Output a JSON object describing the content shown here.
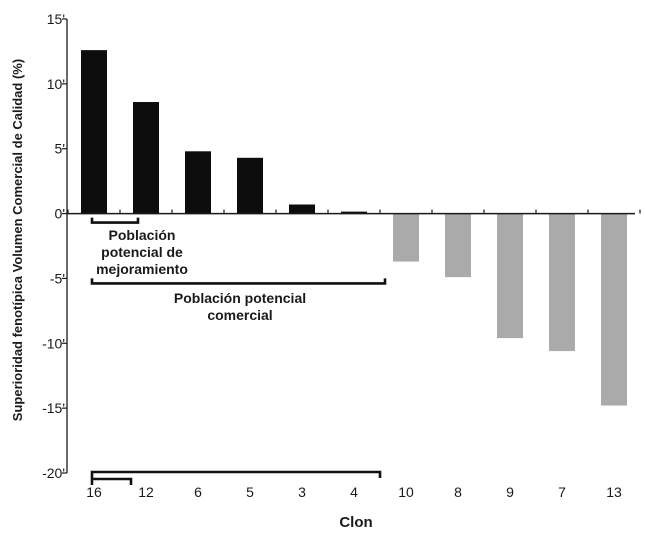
{
  "chart_data": {
    "type": "bar",
    "title": "",
    "xlabel": "Clon",
    "ylabel": "Superioridad fenotípica Volumen Comercial de Calidad (%)",
    "ylim": [
      -20,
      15
    ],
    "y_ticks": [
      15,
      10,
      5,
      0,
      -5,
      -10,
      -15,
      -20
    ],
    "y_tick_labels": [
      "15'",
      "10'",
      "5'",
      "0'",
      "-5'",
      "-10'",
      "-15'",
      "-20'"
    ],
    "grid": false,
    "categories": [
      "16",
      "12",
      "6",
      "5",
      "3",
      "4",
      "10",
      "8",
      "9",
      "7",
      "13"
    ],
    "values": [
      12.6,
      8.6,
      4.8,
      4.3,
      0.7,
      0.15,
      -3.7,
      -4.9,
      -9.6,
      -10.6,
      -14.8
    ],
    "bar_colors": [
      "#0d0d0d",
      "#0d0d0d",
      "#0d0d0d",
      "#0d0d0d",
      "#0d0d0d",
      "#0d0d0d",
      "#aaaaaa",
      "#aaaaaa",
      "#aaaaaa",
      "#aaaaaa",
      "#aaaaaa"
    ],
    "annotations": [
      {
        "lines": [
          "Población",
          "potencial de",
          "mejoramiento"
        ],
        "bracket_from": "16",
        "bracket_to": "12",
        "level": 0
      },
      {
        "lines": [
          "Población potencial",
          "comercial"
        ],
        "bracket_from": "16",
        "bracket_to": "4",
        "level": -5
      }
    ],
    "bottom_brackets": [
      {
        "bracket_from": "16",
        "bracket_to": "12"
      },
      {
        "bracket_from": "16",
        "bracket_to": "4"
      }
    ]
  }
}
